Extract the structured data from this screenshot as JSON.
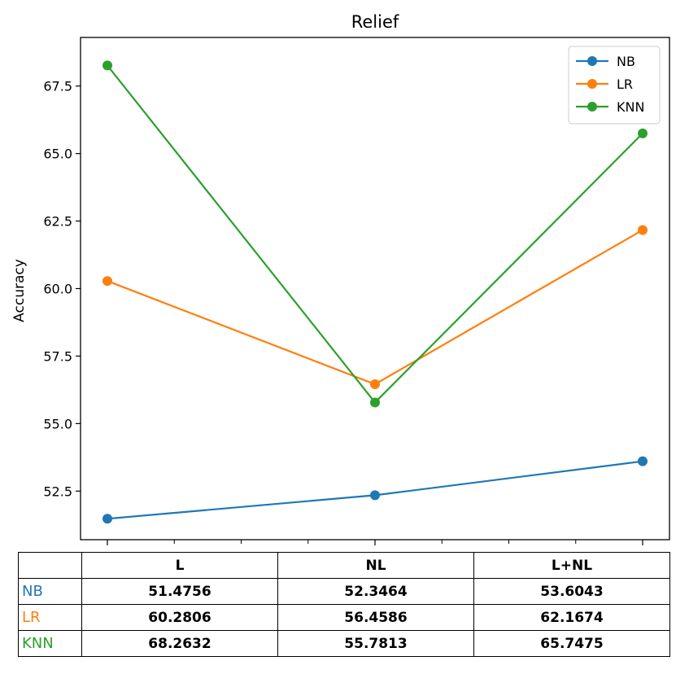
{
  "chart_data": {
    "type": "line",
    "title": "Relief",
    "xlabel": "",
    "ylabel": "Accuracy",
    "categories": [
      "L",
      "NL",
      "L+NL"
    ],
    "ylim": [
      50.7,
      69.3
    ],
    "yticks": [
      52.5,
      55.0,
      57.5,
      60.0,
      62.5,
      65.0,
      67.5
    ],
    "ytick_labels": [
      "52.5",
      "55.0",
      "57.5",
      "60.0",
      "62.5",
      "65.0",
      "67.5"
    ],
    "grid": false,
    "legend": "top-right",
    "series": [
      {
        "name": "NB",
        "color": "#1f77b4",
        "values": [
          51.4756,
          52.3464,
          53.6043
        ],
        "labels": [
          "51.4756",
          "52.3464",
          "53.6043"
        ]
      },
      {
        "name": "LR",
        "color": "#ff7f0e",
        "values": [
          60.2806,
          56.4586,
          62.1674
        ],
        "labels": [
          "60.2806",
          "56.4586",
          "62.1674"
        ]
      },
      {
        "name": "KNN",
        "color": "#2ca02c",
        "values": [
          68.2632,
          55.7813,
          65.7475
        ],
        "labels": [
          "68.2632",
          "55.7813",
          "65.7475"
        ]
      }
    ]
  }
}
